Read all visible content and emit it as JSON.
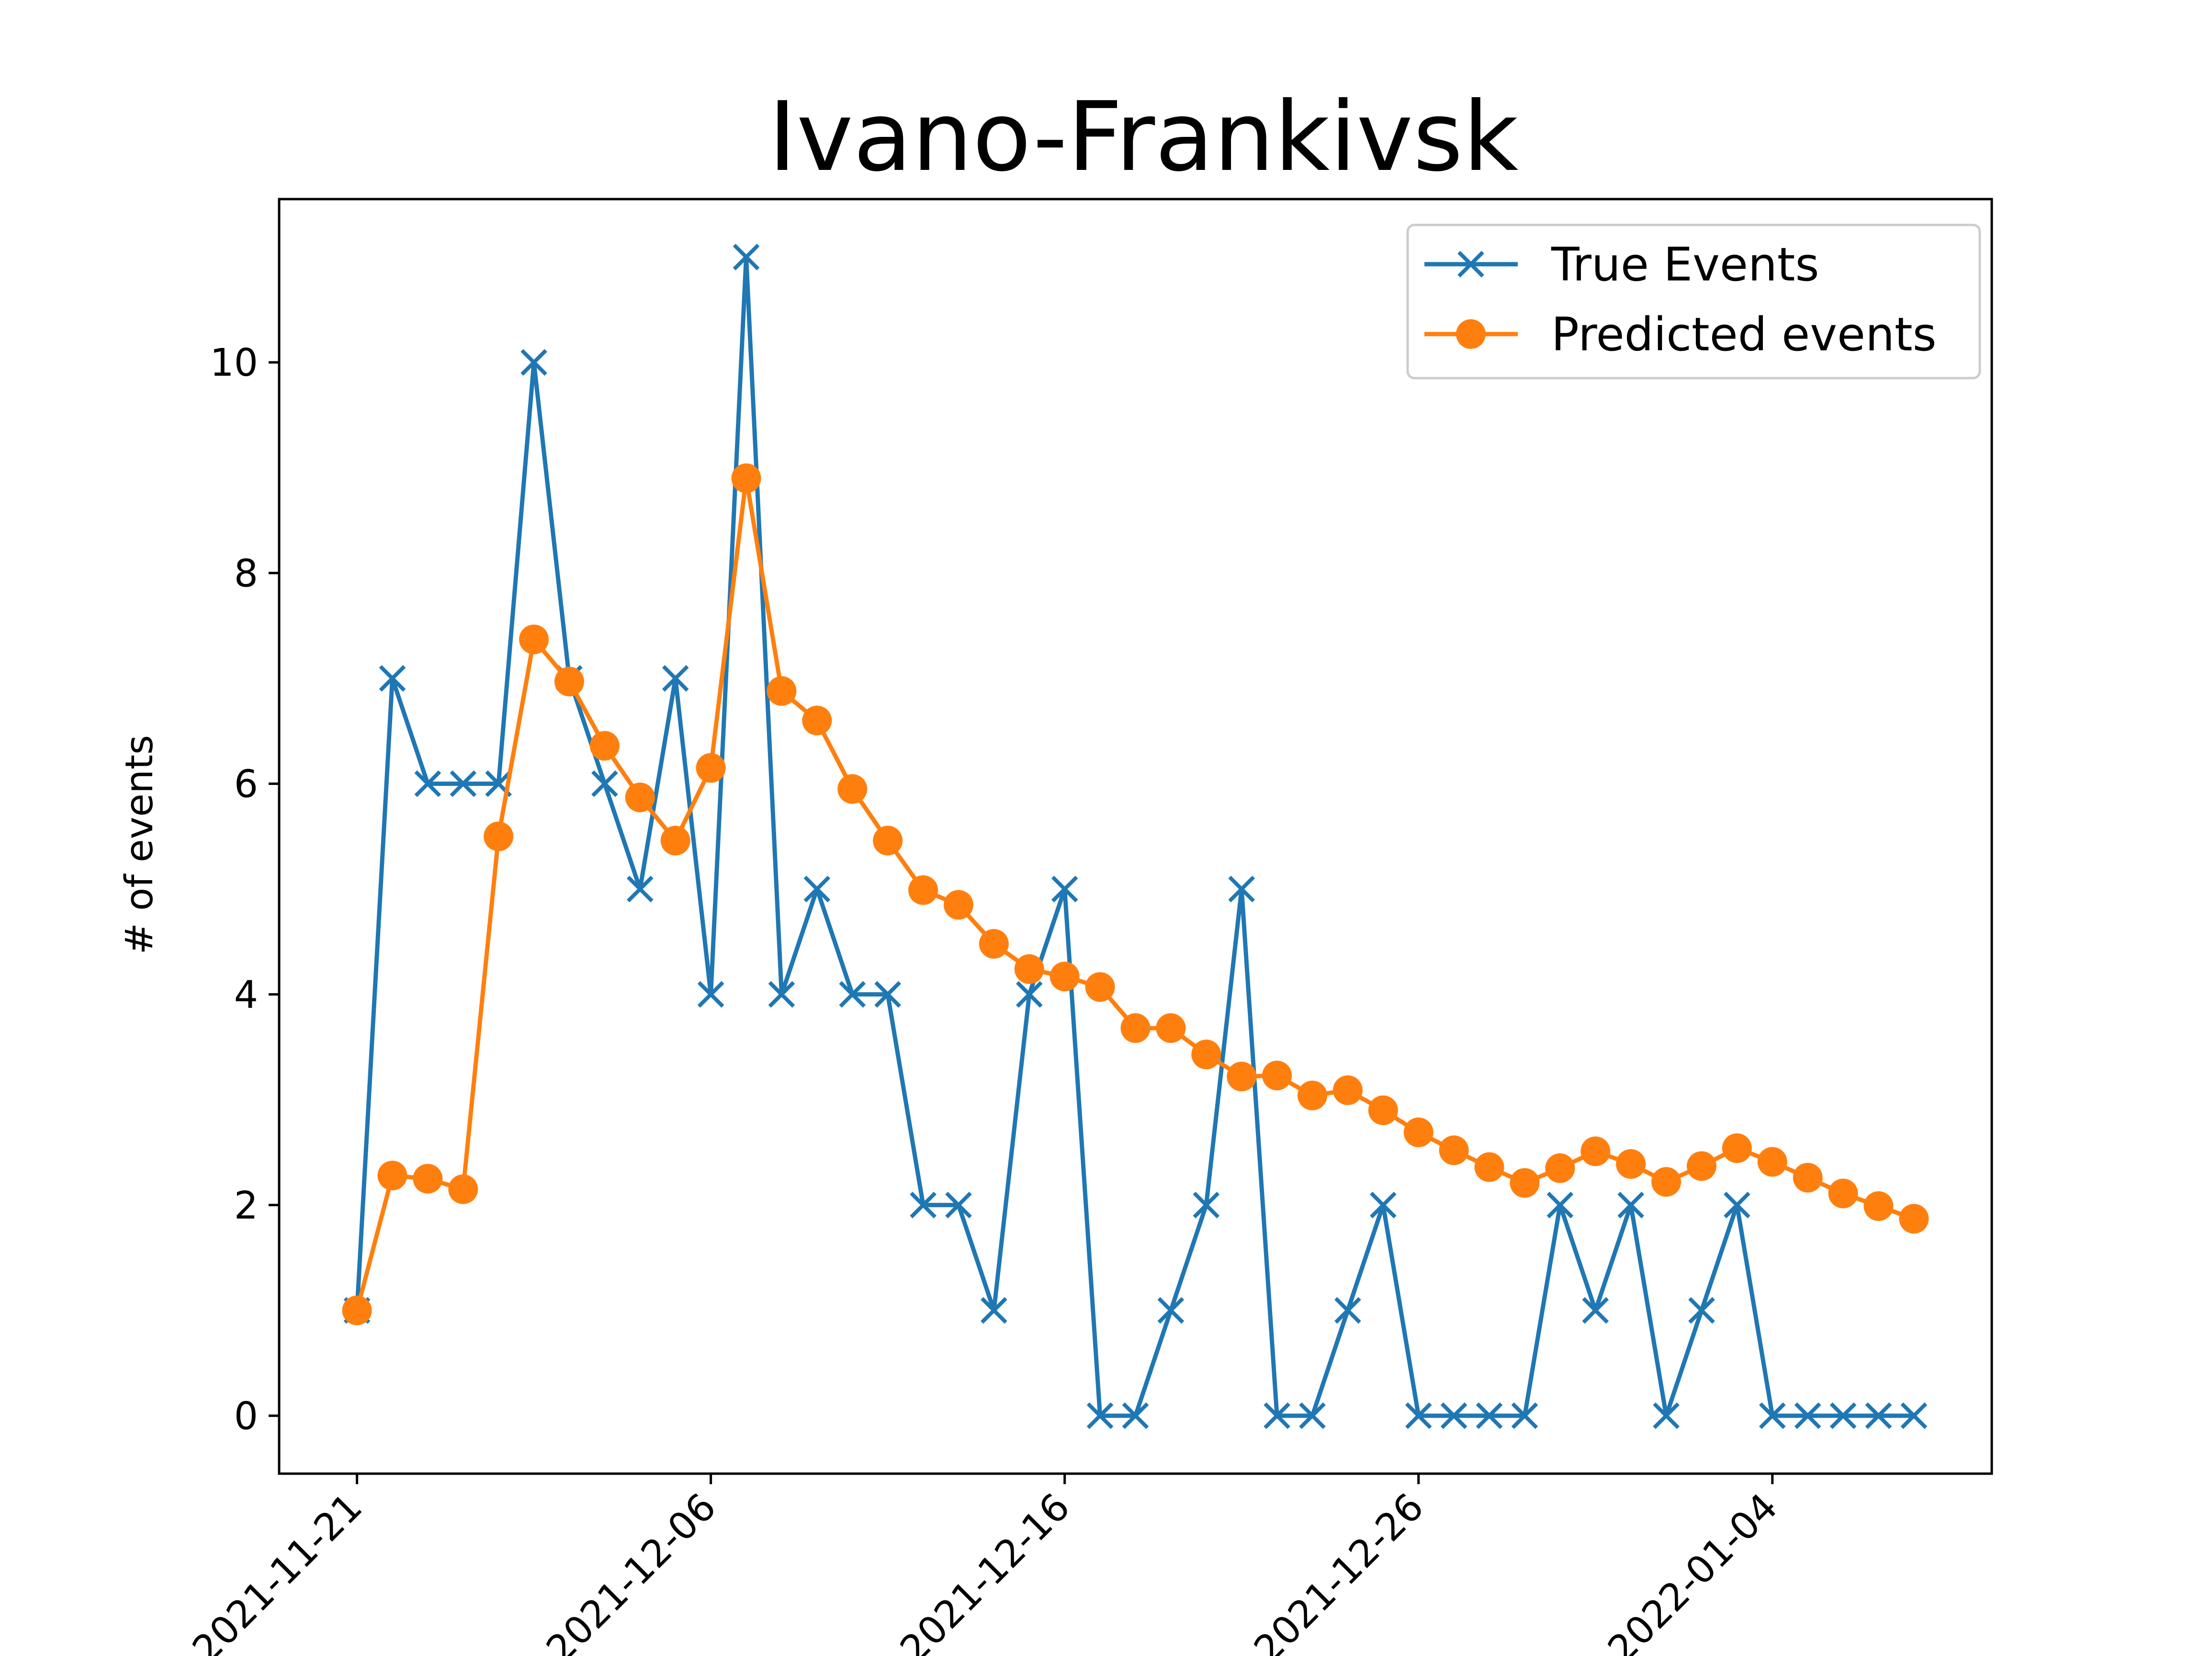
{
  "chart_data": {
    "type": "line",
    "title": "Ivano-Frankivsk",
    "xlabel": "",
    "ylabel": "# of events",
    "x_ticks": [
      "2021-11-21",
      "2021-12-06",
      "2021-12-16",
      "2021-12-26",
      "2022-01-04"
    ],
    "x_tick_positions": [
      0,
      10,
      20,
      30,
      40
    ],
    "xlim": [
      -2.2,
      46.2
    ],
    "ylim": [
      -0.55,
      11.55
    ],
    "y_ticks": [
      0,
      2,
      4,
      6,
      8,
      10
    ],
    "grid": false,
    "legend_position": "upper right",
    "series": [
      {
        "name": "True Events",
        "color": "#1f77b4",
        "marker": "x",
        "values": [
          1,
          7,
          6,
          6,
          6,
          10,
          7,
          6,
          5,
          7,
          4,
          11,
          4,
          5,
          4,
          4,
          2,
          2,
          1,
          4,
          5,
          0,
          0,
          1,
          2,
          5,
          0,
          0,
          1,
          2,
          0,
          0,
          0,
          0,
          2,
          1,
          2,
          0,
          1,
          2,
          0,
          0,
          0,
          0,
          0
        ]
      },
      {
        "name": "Predicted events",
        "color": "#ff7f0e",
        "marker": "o",
        "values": [
          1.0,
          2.28,
          2.25,
          2.15,
          5.5,
          7.37,
          6.97,
          6.36,
          5.87,
          5.46,
          6.15,
          8.9,
          6.88,
          6.6,
          5.95,
          5.46,
          4.99,
          4.85,
          4.48,
          4.24,
          4.17,
          4.07,
          3.68,
          3.68,
          3.43,
          3.22,
          3.23,
          3.04,
          3.09,
          2.9,
          2.69,
          2.52,
          2.36,
          2.21,
          2.35,
          2.51,
          2.39,
          2.22,
          2.37,
          2.54,
          2.41,
          2.26,
          2.11,
          1.99,
          1.87
        ]
      }
    ]
  }
}
